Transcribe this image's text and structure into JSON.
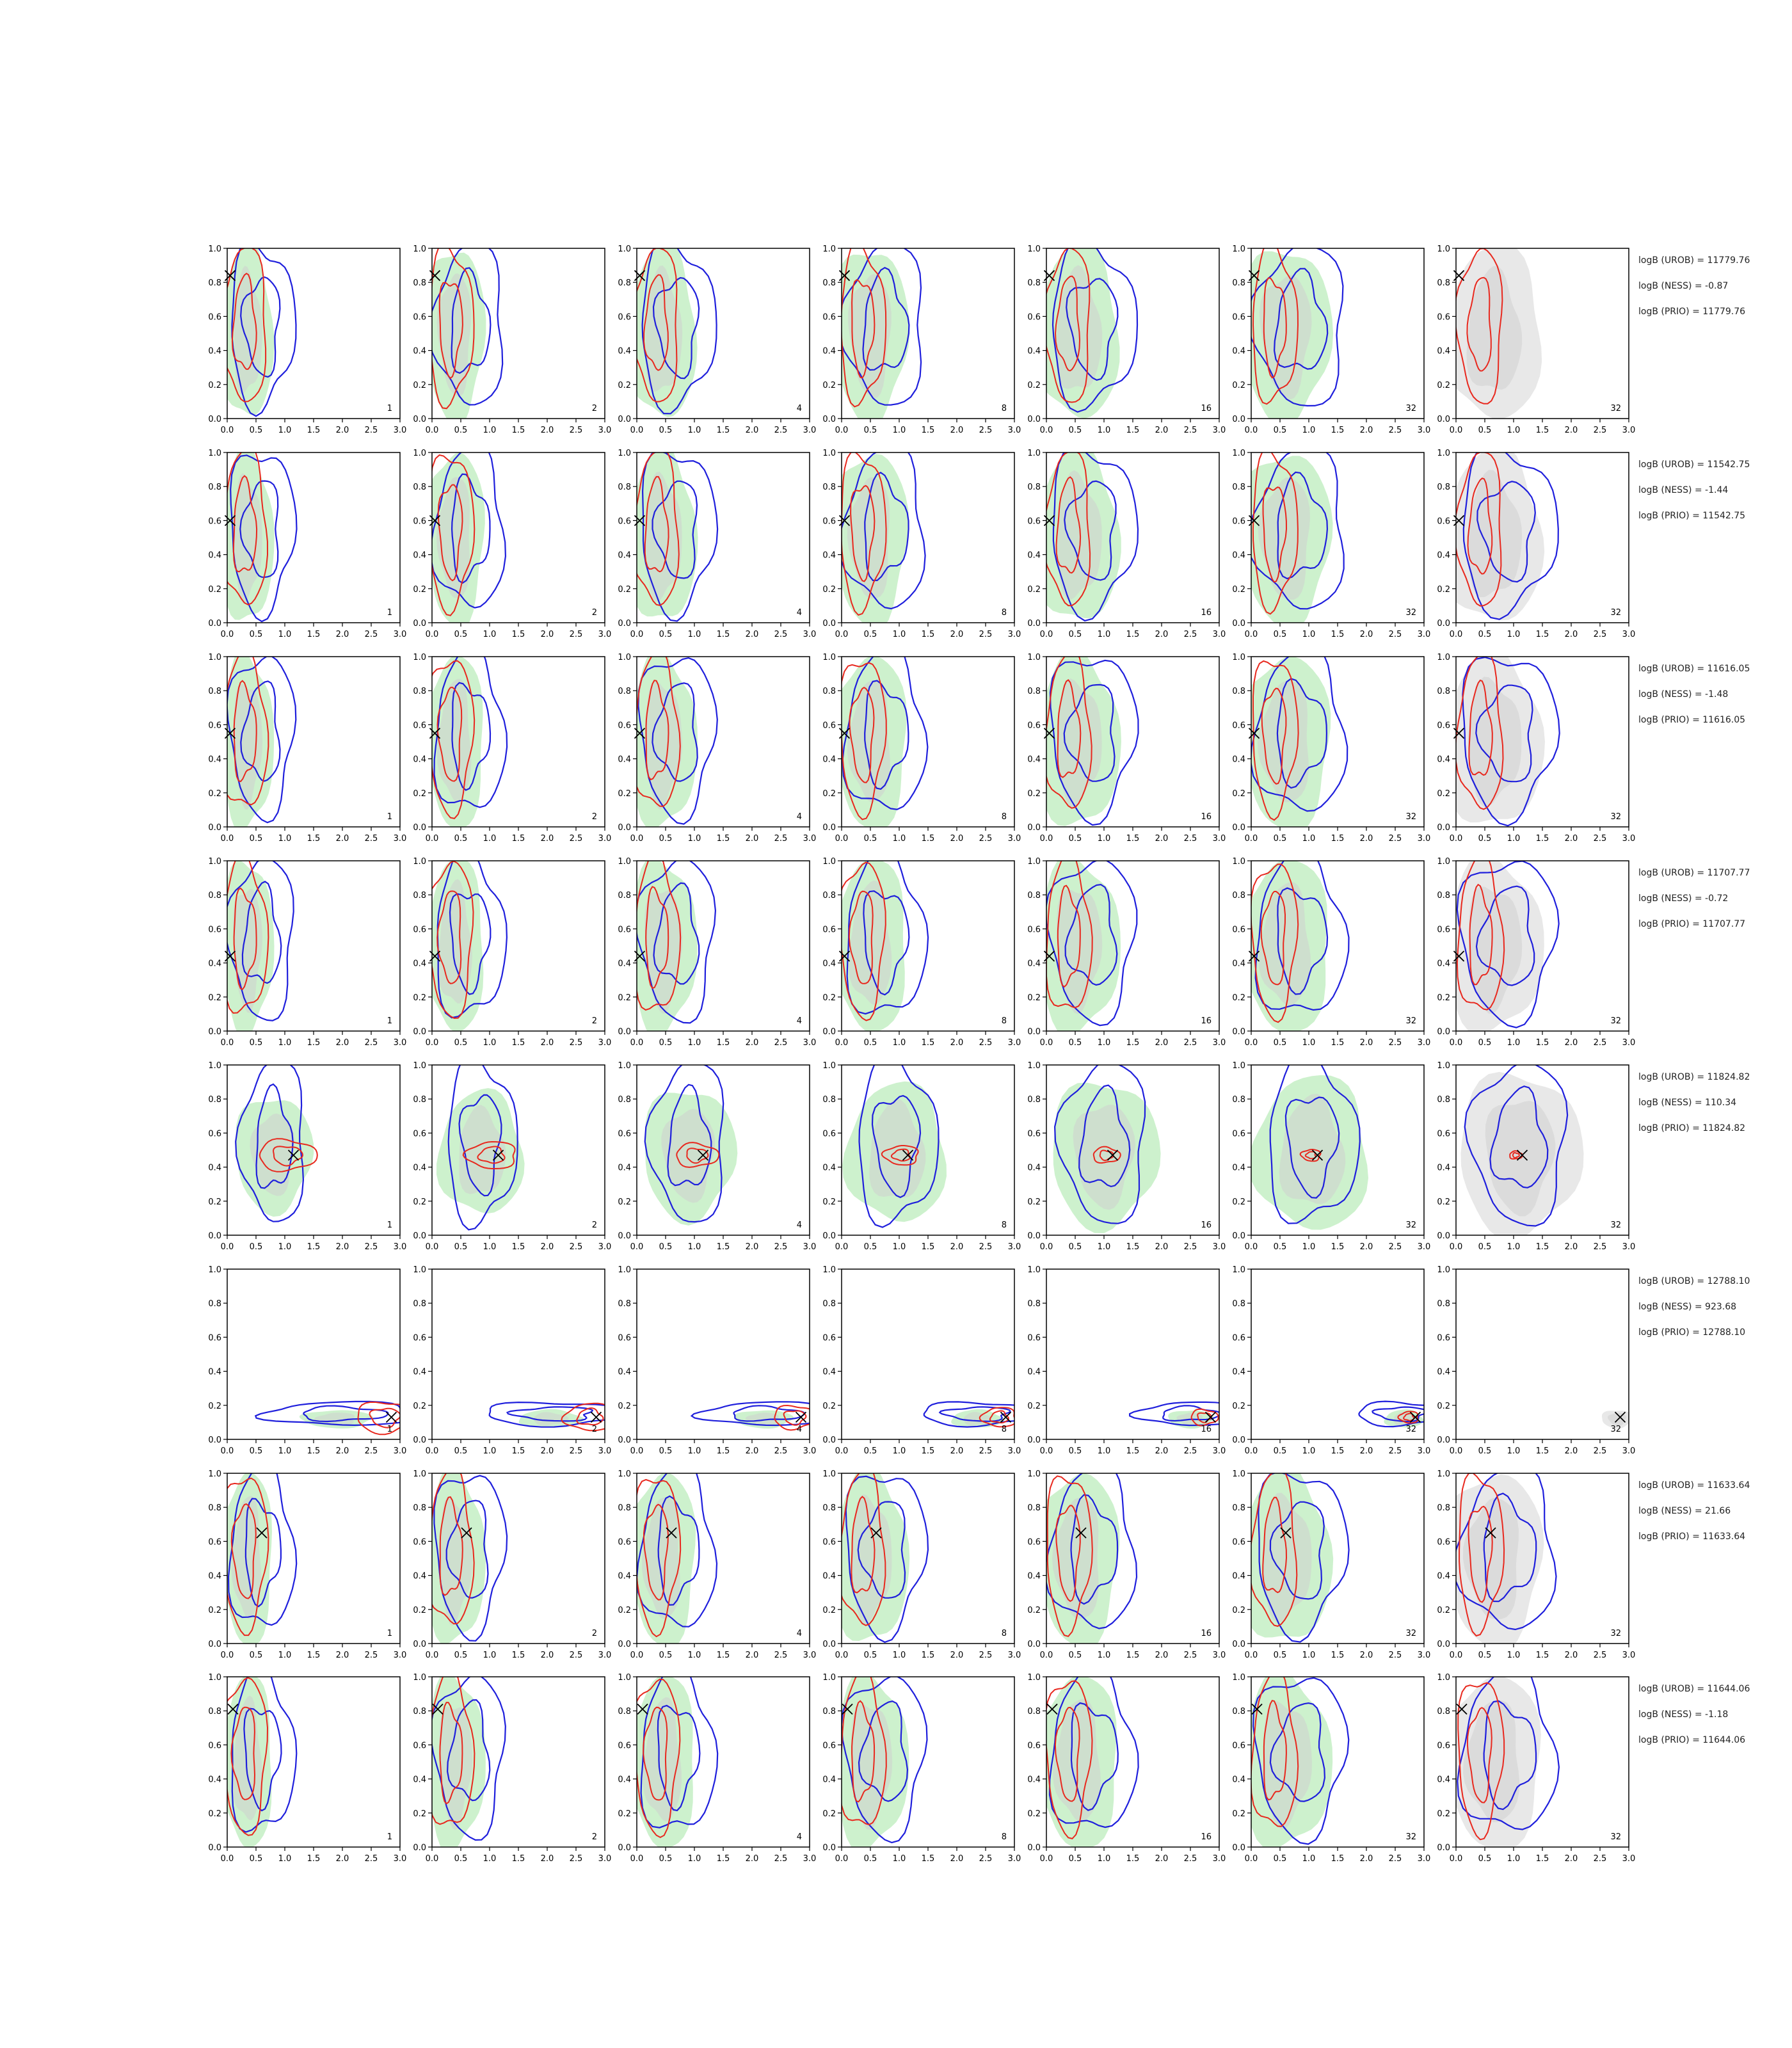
{
  "chart_data": {
    "type": "contour-grid",
    "x_ticks": [
      "0.0",
      "0.5",
      "1.0",
      "1.5",
      "2.0",
      "2.5",
      "3.0"
    ],
    "y_ticks": [
      "0.0",
      "0.2",
      "0.4",
      "0.6",
      "0.8",
      "1.0"
    ],
    "xlim": [
      0,
      3
    ],
    "ylim": [
      0,
      1
    ],
    "column_labels": [
      "1",
      "2",
      "4",
      "8",
      "16",
      "32",
      "32"
    ],
    "colors": {
      "red": "#e8281e",
      "blue": "#1f1fdc",
      "green": "#c8f0c8",
      "gray": "#d0d0d0",
      "marker": "#000000"
    },
    "rows": [
      {
        "marker": [
          0.05,
          0.84
        ],
        "stats": [
          "logB (UROB) = 11779.76",
          "logB (NESS) = -0.87",
          "logB (PRIO) = 11779.76"
        ]
      },
      {
        "marker": [
          0.05,
          0.6
        ],
        "stats": [
          "logB (UROB) = 11542.75",
          "logB (NESS) = -1.44",
          "logB (PRIO) = 11542.75"
        ]
      },
      {
        "marker": [
          0.05,
          0.55
        ],
        "stats": [
          "logB (UROB) = 11616.05",
          "logB (NESS) = -1.48",
          "logB (PRIO) = 11616.05"
        ]
      },
      {
        "marker": [
          0.05,
          0.44
        ],
        "stats": [
          "logB (UROB) = 11707.77",
          "logB (NESS) = -0.72",
          "logB (PRIO) = 11707.77"
        ]
      },
      {
        "marker": [
          1.15,
          0.47
        ],
        "stats": [
          "logB (UROB) = 11824.82",
          "logB (NESS) = 110.34",
          "logB (PRIO) = 11824.82"
        ]
      },
      {
        "marker": [
          2.85,
          0.13
        ],
        "stats": [
          "logB (UROB) = 12788.10",
          "logB (NESS) = 923.68",
          "logB (PRIO) = 12788.10"
        ]
      },
      {
        "marker": [
          0.6,
          0.65
        ],
        "stats": [
          "logB (UROB) = 11633.64",
          "logB (NESS) = 21.66",
          "logB (PRIO) = 11633.64"
        ]
      },
      {
        "marker": [
          0.1,
          0.81
        ],
        "stats": [
          "logB (UROB) = 11644.06",
          "logB (NESS) = -1.18",
          "logB (PRIO) = 11644.06"
        ]
      }
    ]
  }
}
